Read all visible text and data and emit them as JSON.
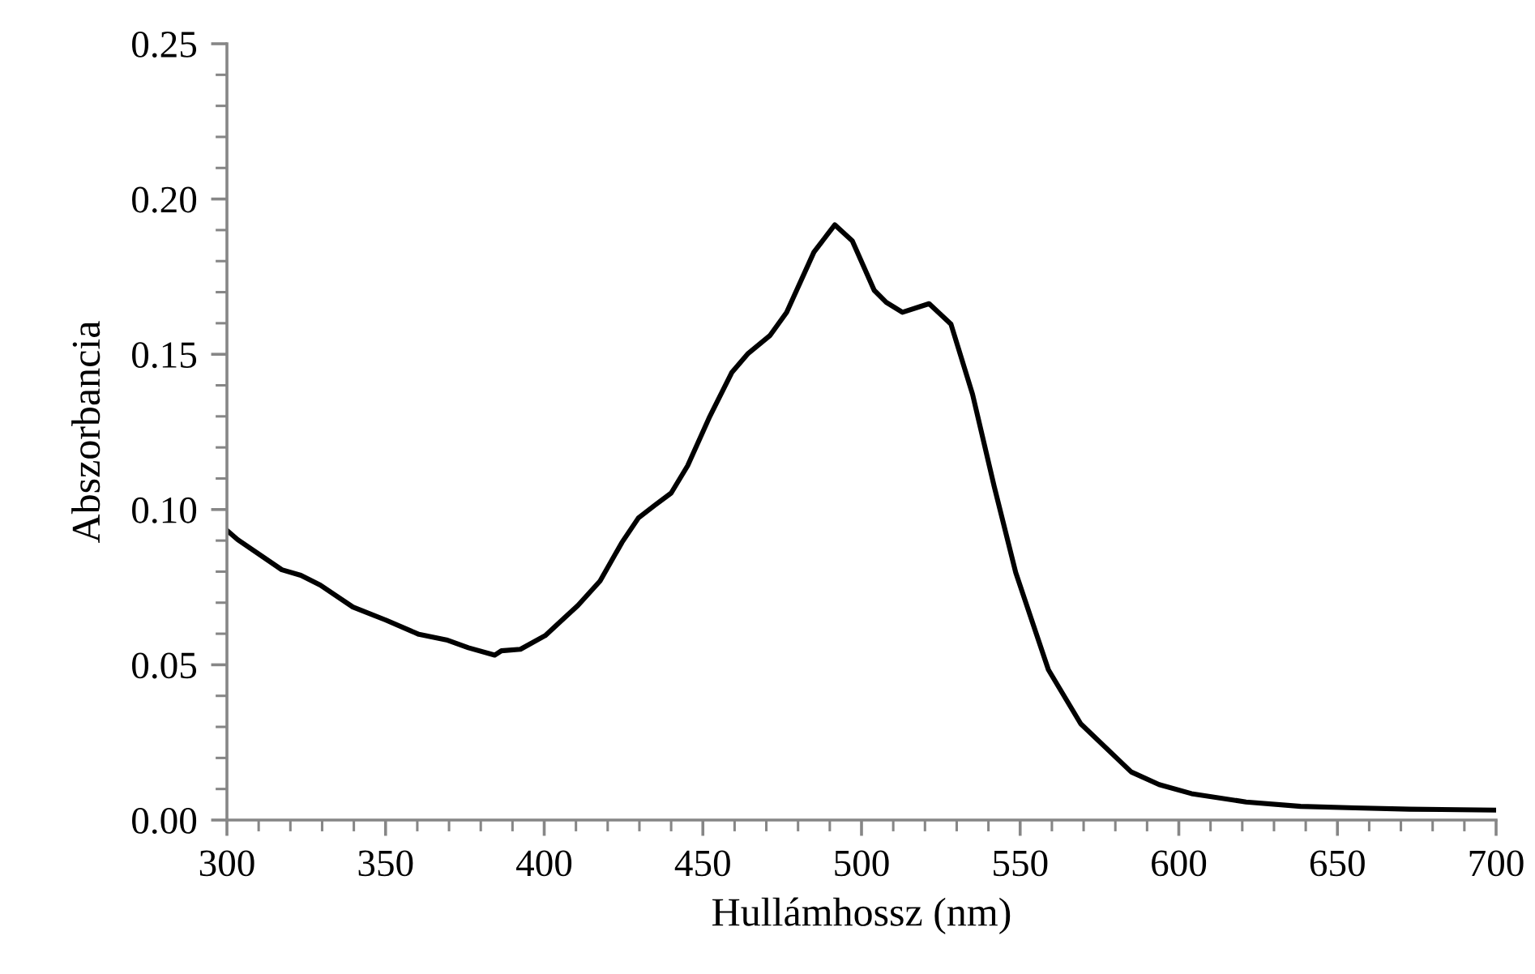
{
  "chart_data": {
    "type": "line",
    "xlabel": "Hullámhossz (nm)",
    "ylabel": "Abszorbancia",
    "xlim": [
      300,
      700
    ],
    "xticks": [
      300,
      {
        "value": 310,
        "label": null
      },
      {
        "value": 320,
        "label": null
      },
      {
        "value": 330,
        "label": null
      },
      {
        "value": 340,
        "label": null
      },
      350,
      {
        "value": 360,
        "label": null
      },
      {
        "value": 370,
        "label": null
      },
      {
        "value": 380,
        "label": null
      },
      {
        "value": 390,
        "label": null
      },
      400,
      {
        "value": 410,
        "label": null
      },
      {
        "value": 420,
        "label": null
      },
      {
        "value": 430,
        "label": null
      },
      {
        "value": 440,
        "label": null
      },
      450,
      {
        "value": 460,
        "label": null
      },
      {
        "value": 470,
        "label": null
      },
      {
        "value": 480,
        "label": null
      },
      {
        "value": 490,
        "label": null
      },
      500,
      {
        "value": 510,
        "label": null
      },
      {
        "value": 520,
        "label": null
      },
      {
        "value": 530,
        "label": null
      },
      {
        "value": 540,
        "label": null
      },
      550,
      {
        "value": 560,
        "label": null
      },
      {
        "value": 570,
        "label": null
      },
      {
        "value": 580,
        "label": null
      },
      {
        "value": 590,
        "label": null
      },
      600,
      {
        "value": 610,
        "label": null
      },
      {
        "value": 620,
        "label": null
      },
      {
        "value": 630,
        "label": null
      },
      {
        "value": 640,
        "label": null
      },
      650,
      {
        "value": 660,
        "label": null
      },
      {
        "value": 670,
        "label": null
      },
      {
        "value": 680,
        "label": null
      },
      {
        "value": 690,
        "label": null
      },
      700
    ],
    "ylim": [
      0,
      0.25
    ],
    "yticks": [
      {
        "value": 0,
        "label": "0.00"
      },
      {
        "value": 0.01,
        "label": null
      },
      {
        "value": 0.02,
        "label": null
      },
      {
        "value": 0.03,
        "label": null
      },
      {
        "value": 0.04,
        "label": null
      },
      {
        "value": 0.05,
        "label": "0.05"
      },
      {
        "value": 0.06,
        "label": null
      },
      {
        "value": 0.07,
        "label": null
      },
      {
        "value": 0.08,
        "label": null
      },
      {
        "value": 0.09,
        "label": null
      },
      {
        "value": 0.1,
        "label": "0.10"
      },
      {
        "value": 0.11,
        "label": null
      },
      {
        "value": 0.12,
        "label": null
      },
      {
        "value": 0.13,
        "label": null
      },
      {
        "value": 0.14,
        "label": null
      },
      {
        "value": 0.15,
        "label": "0.15"
      },
      {
        "value": 0.16,
        "label": null
      },
      {
        "value": 0.17,
        "label": null
      },
      {
        "value": 0.18,
        "label": null
      },
      {
        "value": 0.19,
        "label": null
      },
      {
        "value": 0.2,
        "label": "0.20"
      },
      {
        "value": 0.21,
        "label": null
      },
      {
        "value": 0.22,
        "label": null
      },
      {
        "value": 0.23,
        "label": null
      },
      {
        "value": 0.24,
        "label": null
      },
      {
        "value": 0.25,
        "label": "0.25"
      }
    ],
    "grid": false,
    "legend": false,
    "marker": "none",
    "line_style": "solid",
    "series": [
      {
        "color": "#000000",
        "x": [
          300,
          303.4,
          317.3,
          323.3,
          329.4,
          339.7,
          350.1,
          360.5,
          369.2,
          376.1,
          384.4,
          386.5,
          392.5,
          400.3,
          410.6,
          417.6,
          424.5,
          429.7,
          434.9,
          440,
          445.2,
          452.2,
          459.1,
          464.3,
          471.2,
          476.4,
          485,
          491.6,
          497.1,
          504,
          507.8,
          512.9,
          521.3,
          528.2,
          535,
          541.8,
          548.6,
          558.9,
          569.1,
          585,
          593.8,
          604,
          621.2,
          638.4,
          655.6,
          672.8,
          700
        ],
        "values": [
          0.0933,
          0.0903,
          0.0806,
          0.0788,
          0.0757,
          0.0686,
          0.0644,
          0.0598,
          0.058,
          0.0555,
          0.0531,
          0.0545,
          0.055,
          0.0594,
          0.0691,
          0.077,
          0.0894,
          0.0973,
          0.1014,
          0.1053,
          0.1141,
          0.13,
          0.1441,
          0.1503,
          0.1561,
          0.1635,
          0.1829,
          0.1917,
          0.1865,
          0.1706,
          0.1667,
          0.1635,
          0.1663,
          0.1597,
          0.1371,
          0.1075,
          0.0797,
          0.0484,
          0.031,
          0.0155,
          0.0114,
          0.0085,
          0.0058,
          0.0044,
          0.0039,
          0.0035,
          0.0032
        ]
      }
    ]
  }
}
